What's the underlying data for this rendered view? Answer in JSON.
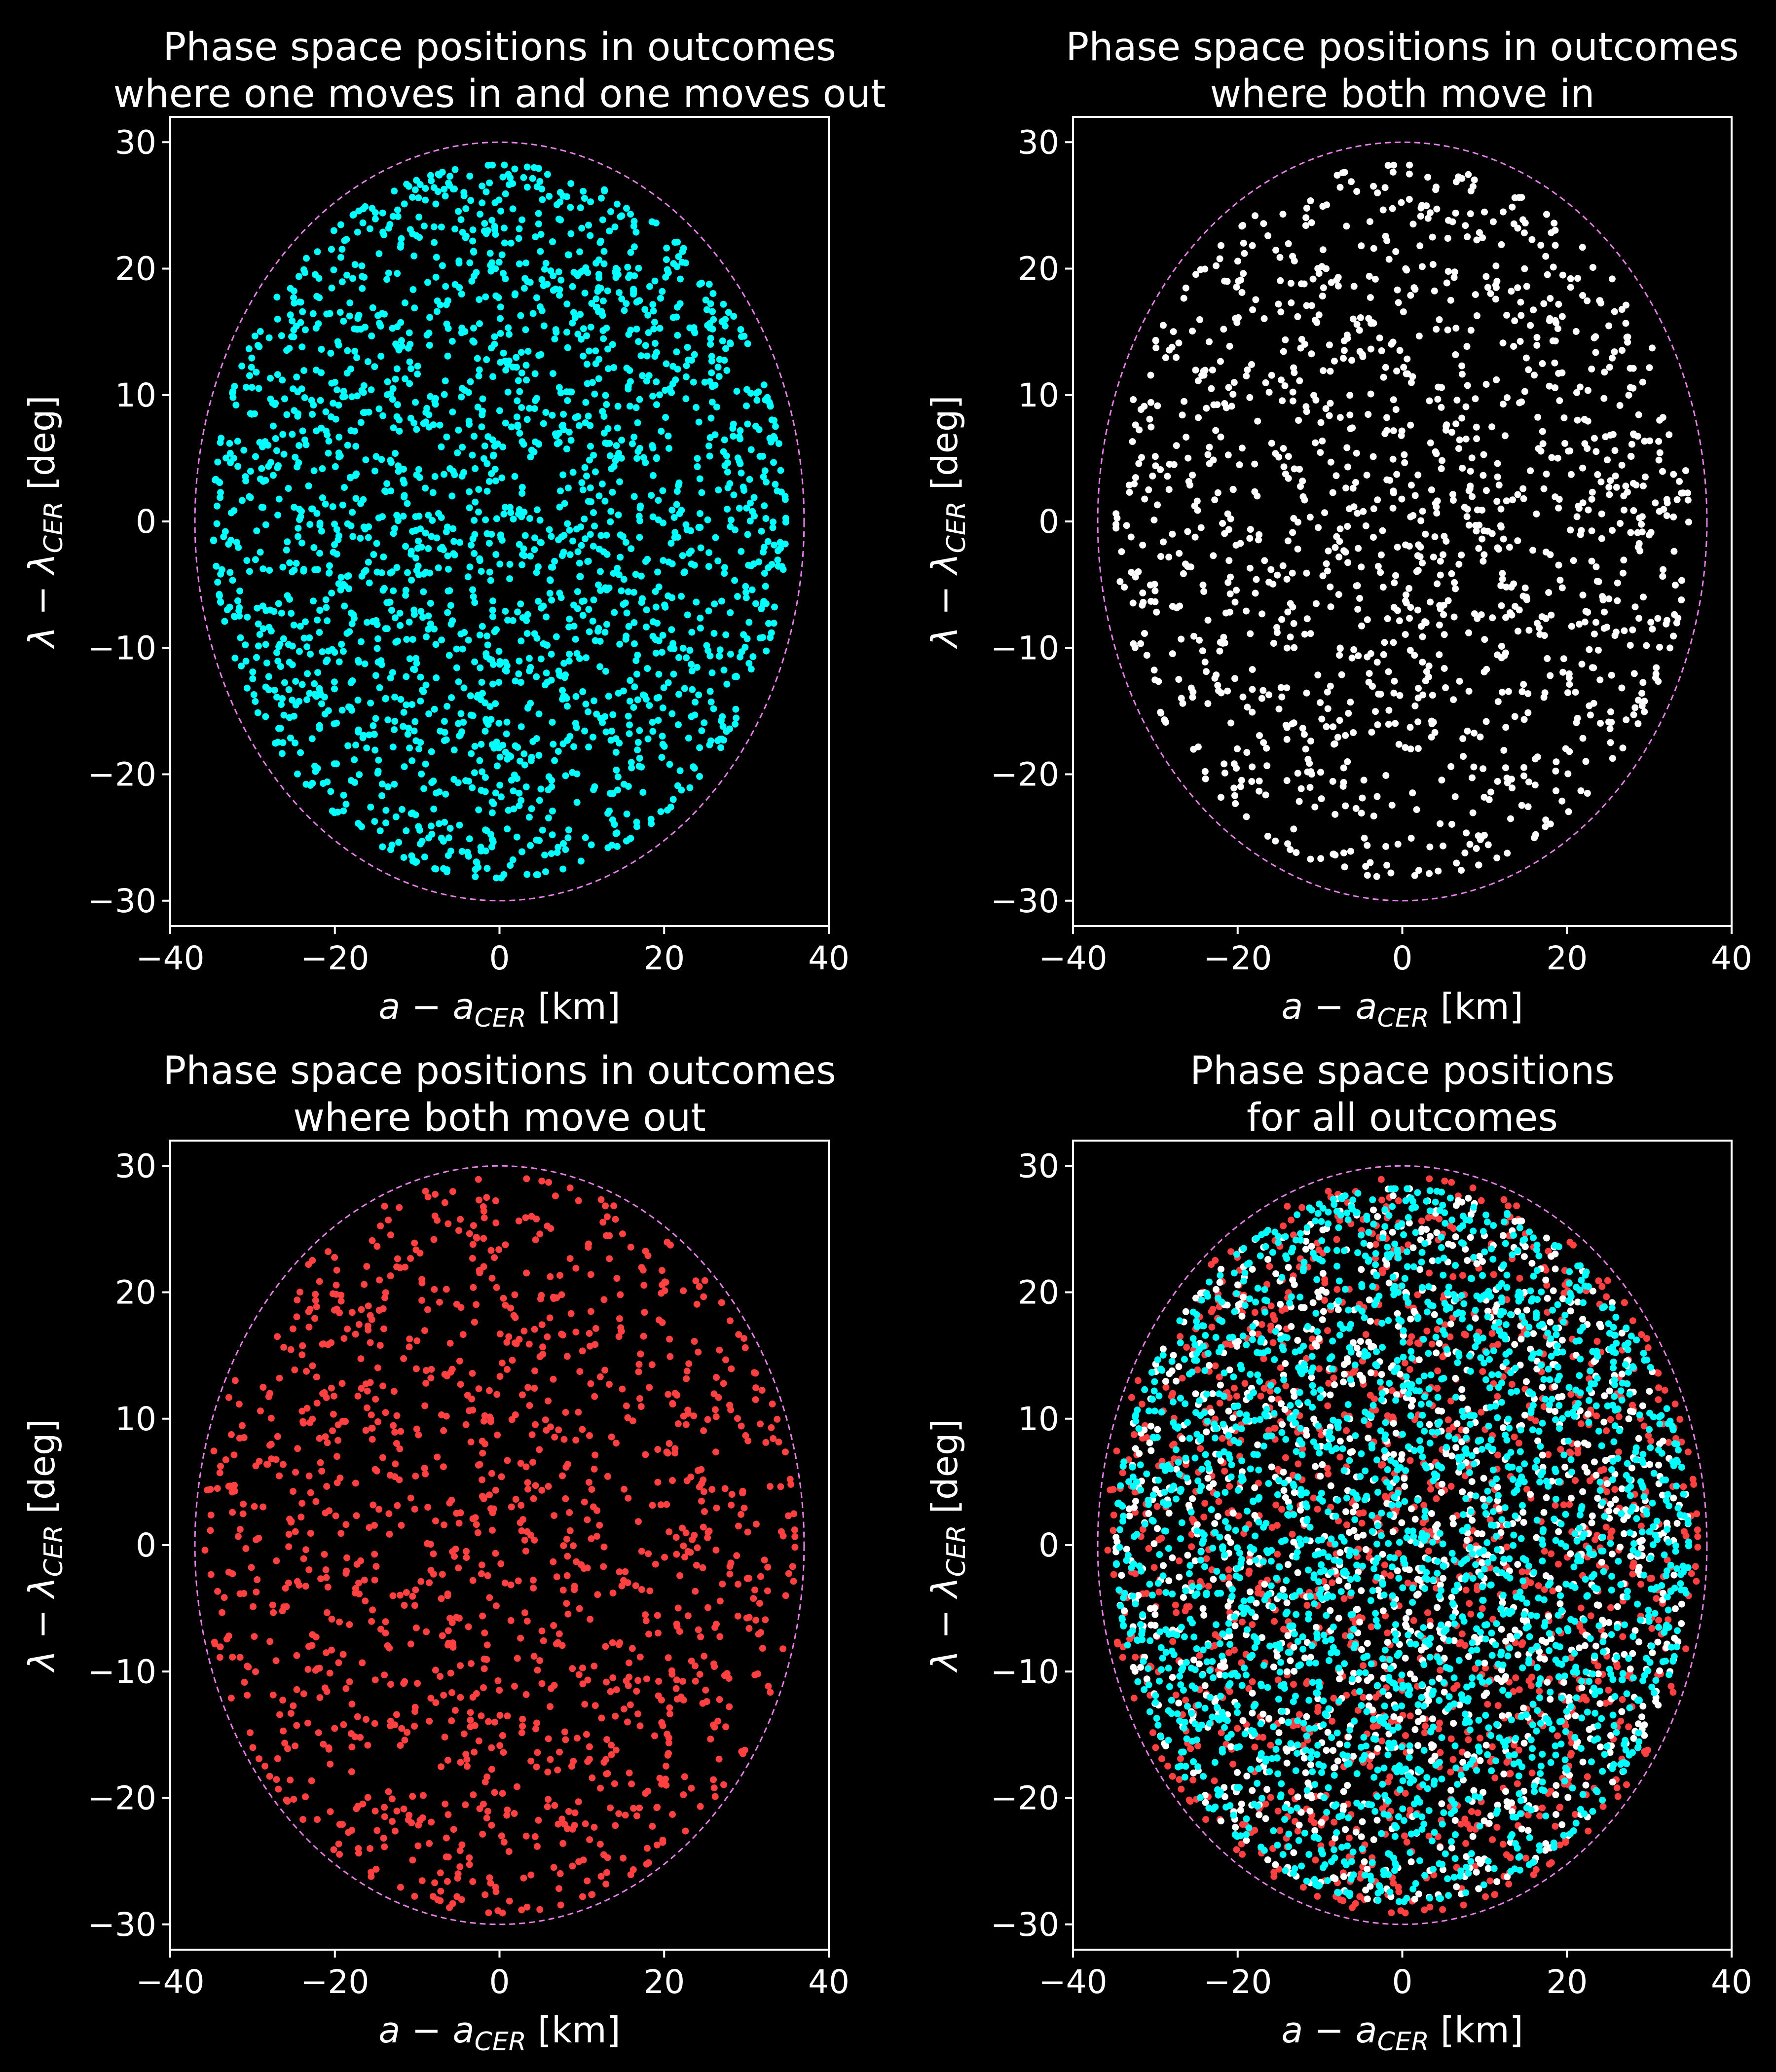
{
  "colors": {
    "background": "#000000",
    "axes": "#ffffff",
    "boundary": "#e680e6",
    "cyan": "#00ffff",
    "white": "#ffffff",
    "red": "#ff4040"
  },
  "chart_data": [
    {
      "type": "scatter",
      "title_lines": [
        "Phase space positions in outcomes",
        "where one moves in and one moves out"
      ],
      "xlabel": "a − a",
      "xlabel_sub": "CER",
      "xlabel_unit": " [km]",
      "ylabel": "λ − λ",
      "ylabel_sub": "CER",
      "ylabel_unit": " [deg]",
      "xlim": [
        -40,
        40
      ],
      "ylim": [
        -32,
        32
      ],
      "xticks": [
        -40,
        -20,
        0,
        20,
        40
      ],
      "yticks": [
        -30,
        -20,
        -10,
        0,
        10,
        20,
        30
      ],
      "xtick_labels": [
        "−40",
        "−20",
        "0",
        "20",
        "40"
      ],
      "ytick_labels": [
        "−30",
        "−20",
        "−10",
        "0",
        "10",
        "20",
        "30"
      ],
      "grid": false,
      "boundary_ellipse": {
        "a": 37,
        "b": 30
      },
      "series": [
        {
          "color": "cyan",
          "count": 2200,
          "seed": 11,
          "radius_limit": 0.94
        }
      ]
    },
    {
      "type": "scatter",
      "title_lines": [
        "Phase space positions in outcomes",
        "where both move in"
      ],
      "xlabel": "a − a",
      "xlabel_sub": "CER",
      "xlabel_unit": " [km]",
      "ylabel": "λ − λ",
      "ylabel_sub": "CER",
      "ylabel_unit": " [deg]",
      "xlim": [
        -40,
        40
      ],
      "ylim": [
        -32,
        32
      ],
      "xticks": [
        -40,
        -20,
        0,
        20,
        40
      ],
      "yticks": [
        -30,
        -20,
        -10,
        0,
        10,
        20,
        30
      ],
      "xtick_labels": [
        "−40",
        "−20",
        "0",
        "20",
        "40"
      ],
      "ytick_labels": [
        "−30",
        "−20",
        "−10",
        "0",
        "10",
        "20",
        "30"
      ],
      "grid": false,
      "boundary_ellipse": {
        "a": 37,
        "b": 30
      },
      "series": [
        {
          "color": "white",
          "count": 1300,
          "seed": 23,
          "radius_limit": 0.94
        }
      ]
    },
    {
      "type": "scatter",
      "title_lines": [
        "Phase space positions in outcomes",
        "where both move out"
      ],
      "xlabel": "a − a",
      "xlabel_sub": "CER",
      "xlabel_unit": " [km]",
      "ylabel": "λ − λ",
      "ylabel_sub": "CER",
      "ylabel_unit": " [deg]",
      "xlim": [
        -40,
        40
      ],
      "ylim": [
        -32,
        32
      ],
      "xticks": [
        -40,
        -20,
        0,
        20,
        40
      ],
      "yticks": [
        -30,
        -20,
        -10,
        0,
        10,
        20,
        30
      ],
      "xtick_labels": [
        "−40",
        "−20",
        "0",
        "20",
        "40"
      ],
      "ytick_labels": [
        "−30",
        "−20",
        "−10",
        "0",
        "10",
        "20",
        "30"
      ],
      "grid": false,
      "boundary_ellipse": {
        "a": 37,
        "b": 30
      },
      "series": [
        {
          "color": "red",
          "count": 1300,
          "seed": 37,
          "radius_limit": 0.97
        }
      ]
    },
    {
      "type": "scatter",
      "title_lines": [
        "Phase space positions",
        "for all outcomes"
      ],
      "xlabel": "a − a",
      "xlabel_sub": "CER",
      "xlabel_unit": " [km]",
      "ylabel": "λ − λ",
      "ylabel_sub": "CER",
      "ylabel_unit": " [deg]",
      "xlim": [
        -40,
        40
      ],
      "ylim": [
        -32,
        32
      ],
      "xticks": [
        -40,
        -20,
        0,
        20,
        40
      ],
      "yticks": [
        -30,
        -20,
        -10,
        0,
        10,
        20,
        30
      ],
      "xtick_labels": [
        "−40",
        "−20",
        "0",
        "20",
        "40"
      ],
      "ytick_labels": [
        "−30",
        "−20",
        "−10",
        "0",
        "10",
        "20",
        "30"
      ],
      "grid": false,
      "boundary_ellipse": {
        "a": 37,
        "b": 30
      },
      "series": [
        {
          "color": "red",
          "count": 1300,
          "seed": 37,
          "radius_limit": 0.97
        },
        {
          "color": "white",
          "count": 1300,
          "seed": 23,
          "radius_limit": 0.94
        },
        {
          "color": "cyan",
          "count": 2200,
          "seed": 11,
          "radius_limit": 0.94
        }
      ]
    }
  ]
}
